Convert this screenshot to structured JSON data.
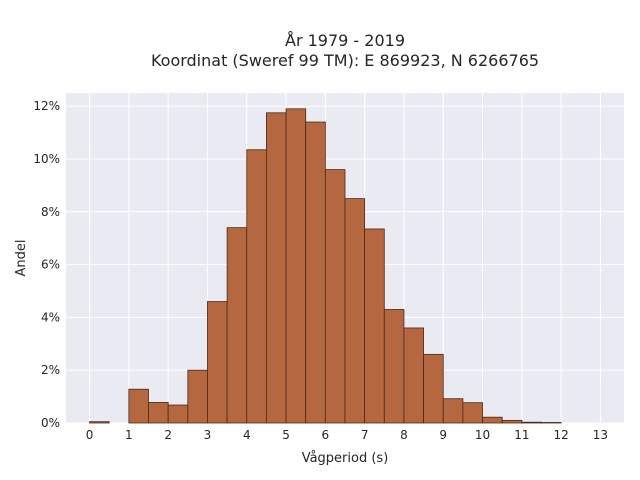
{
  "chart_data": {
    "type": "bar",
    "title": "År 1979 - 2019",
    "subtitle": "Koordinat (Sweref 99 TM): E 869923, N 6266765",
    "xlabel": "Vågperiod (s)",
    "ylabel": "Andel",
    "bin_width": 0.5,
    "bins_start": [
      0,
      0.5,
      1,
      1.5,
      2,
      2.5,
      3,
      3.5,
      4,
      4.5,
      5,
      5.5,
      6,
      6.5,
      7,
      7.5,
      8,
      8.5,
      9,
      9.5,
      10,
      10.5,
      11,
      11.5
    ],
    "values": [
      0.05,
      0.0,
      1.28,
      0.78,
      0.68,
      2.0,
      4.6,
      7.4,
      10.35,
      11.75,
      11.9,
      11.4,
      9.6,
      8.5,
      7.35,
      4.3,
      3.6,
      2.6,
      0.92,
      0.77,
      0.22,
      0.1,
      0.03,
      0.02
    ],
    "unit": "%",
    "xlim": [
      -0.6,
      13.6
    ],
    "ylim": [
      0,
      12.5
    ],
    "xticks": [
      0,
      1,
      2,
      3,
      4,
      5,
      6,
      7,
      8,
      9,
      10,
      11,
      12,
      13
    ],
    "yticks": [
      0,
      2,
      4,
      6,
      8,
      10,
      12
    ],
    "ytick_labels": [
      "0%",
      "2%",
      "4%",
      "6%",
      "8%",
      "10%",
      "12%"
    ],
    "grid": true,
    "colors": {
      "bar": "#b5683f",
      "bar_edge": "#4a2a1a",
      "plot_bg": "#eaeaf2",
      "grid": "#ffffff"
    }
  }
}
